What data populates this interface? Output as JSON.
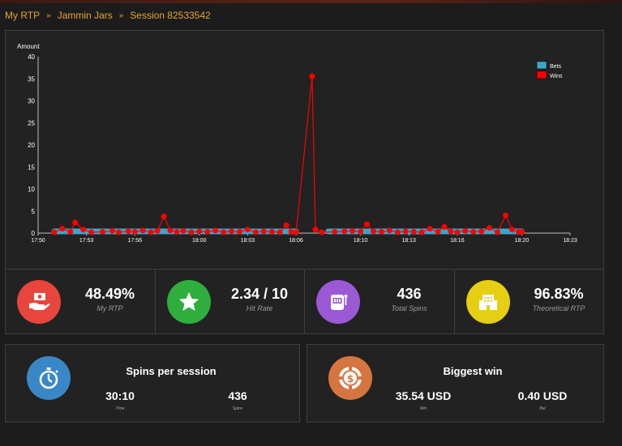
{
  "breadcrumb": {
    "items": [
      "My RTP",
      "Jammin Jars",
      "Session 82533542"
    ],
    "separator": "»"
  },
  "chart_data": {
    "type": "line",
    "ylabel": "Amount",
    "ylim": [
      0,
      40
    ],
    "yticks": [
      0,
      5,
      10,
      15,
      20,
      25,
      30,
      35,
      40
    ],
    "xlim": [
      "17:50",
      "18:23"
    ],
    "xticks": [
      "17:50",
      "17:53",
      "17:56",
      "18:00",
      "18:03",
      "18:06",
      "18:10",
      "18:13",
      "18:16",
      "18:20",
      "18:23"
    ],
    "legend_position": "top-right",
    "series": [
      {
        "name": "Bets",
        "color": "#39a7c8",
        "segments": [
          {
            "from": "17:51",
            "to": "18:06",
            "value": 0.4
          },
          {
            "from": "18:08",
            "to": "18:20",
            "value": 0.4
          }
        ]
      },
      {
        "name": "Wins",
        "color": "#ff0000",
        "points": [
          [
            "17:51",
            0.2
          ],
          [
            "17:51.5",
            1.0
          ],
          [
            "17:52",
            0.3
          ],
          [
            "17:52.3",
            2.4
          ],
          [
            "17:52.8",
            0.8
          ],
          [
            "17:53.3",
            0.2
          ],
          [
            "17:54",
            0.3
          ],
          [
            "17:54.6",
            0.5
          ],
          [
            "17:55",
            0.2
          ],
          [
            "17:55.6",
            0.4
          ],
          [
            "17:56",
            0.3
          ],
          [
            "17:56.5",
            0.6
          ],
          [
            "17:57",
            0.2
          ],
          [
            "17:57.4",
            0.5
          ],
          [
            "17:57.8",
            3.8
          ],
          [
            "17:58.2",
            0.6
          ],
          [
            "17:58.6",
            0.3
          ],
          [
            "17:59",
            0.5
          ],
          [
            "17:59.5",
            0.2
          ],
          [
            "18:00",
            0.4
          ],
          [
            "18:00.5",
            0.3
          ],
          [
            "18:01",
            0.6
          ],
          [
            "18:01.5",
            0.2
          ],
          [
            "18:02",
            0.4
          ],
          [
            "18:02.5",
            0.3
          ],
          [
            "18:03",
            0.8
          ],
          [
            "18:03.5",
            0.2
          ],
          [
            "18:04",
            0.4
          ],
          [
            "18:04.5",
            0.3
          ],
          [
            "18:05",
            0.2
          ],
          [
            "18:05.4",
            1.8
          ],
          [
            "18:05.7",
            0.3
          ],
          [
            "18:06",
            0.2
          ],
          [
            "18:07",
            35.54
          ],
          [
            "18:07.2",
            0.8
          ],
          [
            "18:07.6",
            0.2
          ],
          [
            "18:08.4",
            0.3
          ],
          [
            "18:09",
            0.4
          ],
          [
            "18:09.5",
            0.5
          ],
          [
            "18:10",
            0.3
          ],
          [
            "18:10.4",
            2.0
          ],
          [
            "18:10.8",
            0.4
          ],
          [
            "18:11.3",
            0.3
          ],
          [
            "18:11.8",
            0.6
          ],
          [
            "18:12.3",
            0.2
          ],
          [
            "18:12.8",
            0.4
          ],
          [
            "18:13.3",
            0.3
          ],
          [
            "18:13.8",
            0.2
          ],
          [
            "18:14.3",
            1.0
          ],
          [
            "18:14.8",
            0.3
          ],
          [
            "18:15.2",
            1.4
          ],
          [
            "18:15.6",
            0.4
          ],
          [
            "18:16",
            0.2
          ],
          [
            "18:16.5",
            0.5
          ],
          [
            "18:17",
            0.3
          ],
          [
            "18:17.5",
            0.4
          ],
          [
            "18:18",
            1.2
          ],
          [
            "18:18.5",
            0.2
          ],
          [
            "18:19",
            4.0
          ],
          [
            "18:19.4",
            0.8
          ],
          [
            "18:19.8",
            0.3
          ],
          [
            "18:20",
            0.3
          ]
        ]
      }
    ]
  },
  "stats": [
    {
      "value": "48.49%",
      "label": "My RTP",
      "color": "#e8453c",
      "icon": "money-hand-icon"
    },
    {
      "value": "2.34 / 10",
      "label": "Hit Rate",
      "color": "#2fae3e",
      "icon": "star-icon"
    },
    {
      "value": "436",
      "label": "Total Spins",
      "color": "#9b59d6",
      "icon": "slot-machine-icon"
    },
    {
      "value": "96.83%",
      "label": "Theoretical RTP",
      "color": "#e6cf12",
      "icon": "casino-building-icon"
    }
  ],
  "spins_panel": {
    "title": "Spins per session",
    "left_value": "30:10",
    "left_label": "Time",
    "right_value": "436",
    "right_label": "Spins",
    "color": "#3a87c8",
    "icon": "stopwatch-icon"
  },
  "win_panel": {
    "title": "Biggest win",
    "left_value": "35.54 USD",
    "left_label": "Win",
    "right_value": "0.40 USD",
    "right_label": "Bet",
    "color": "#d67540",
    "icon": "casino-chip-icon"
  }
}
